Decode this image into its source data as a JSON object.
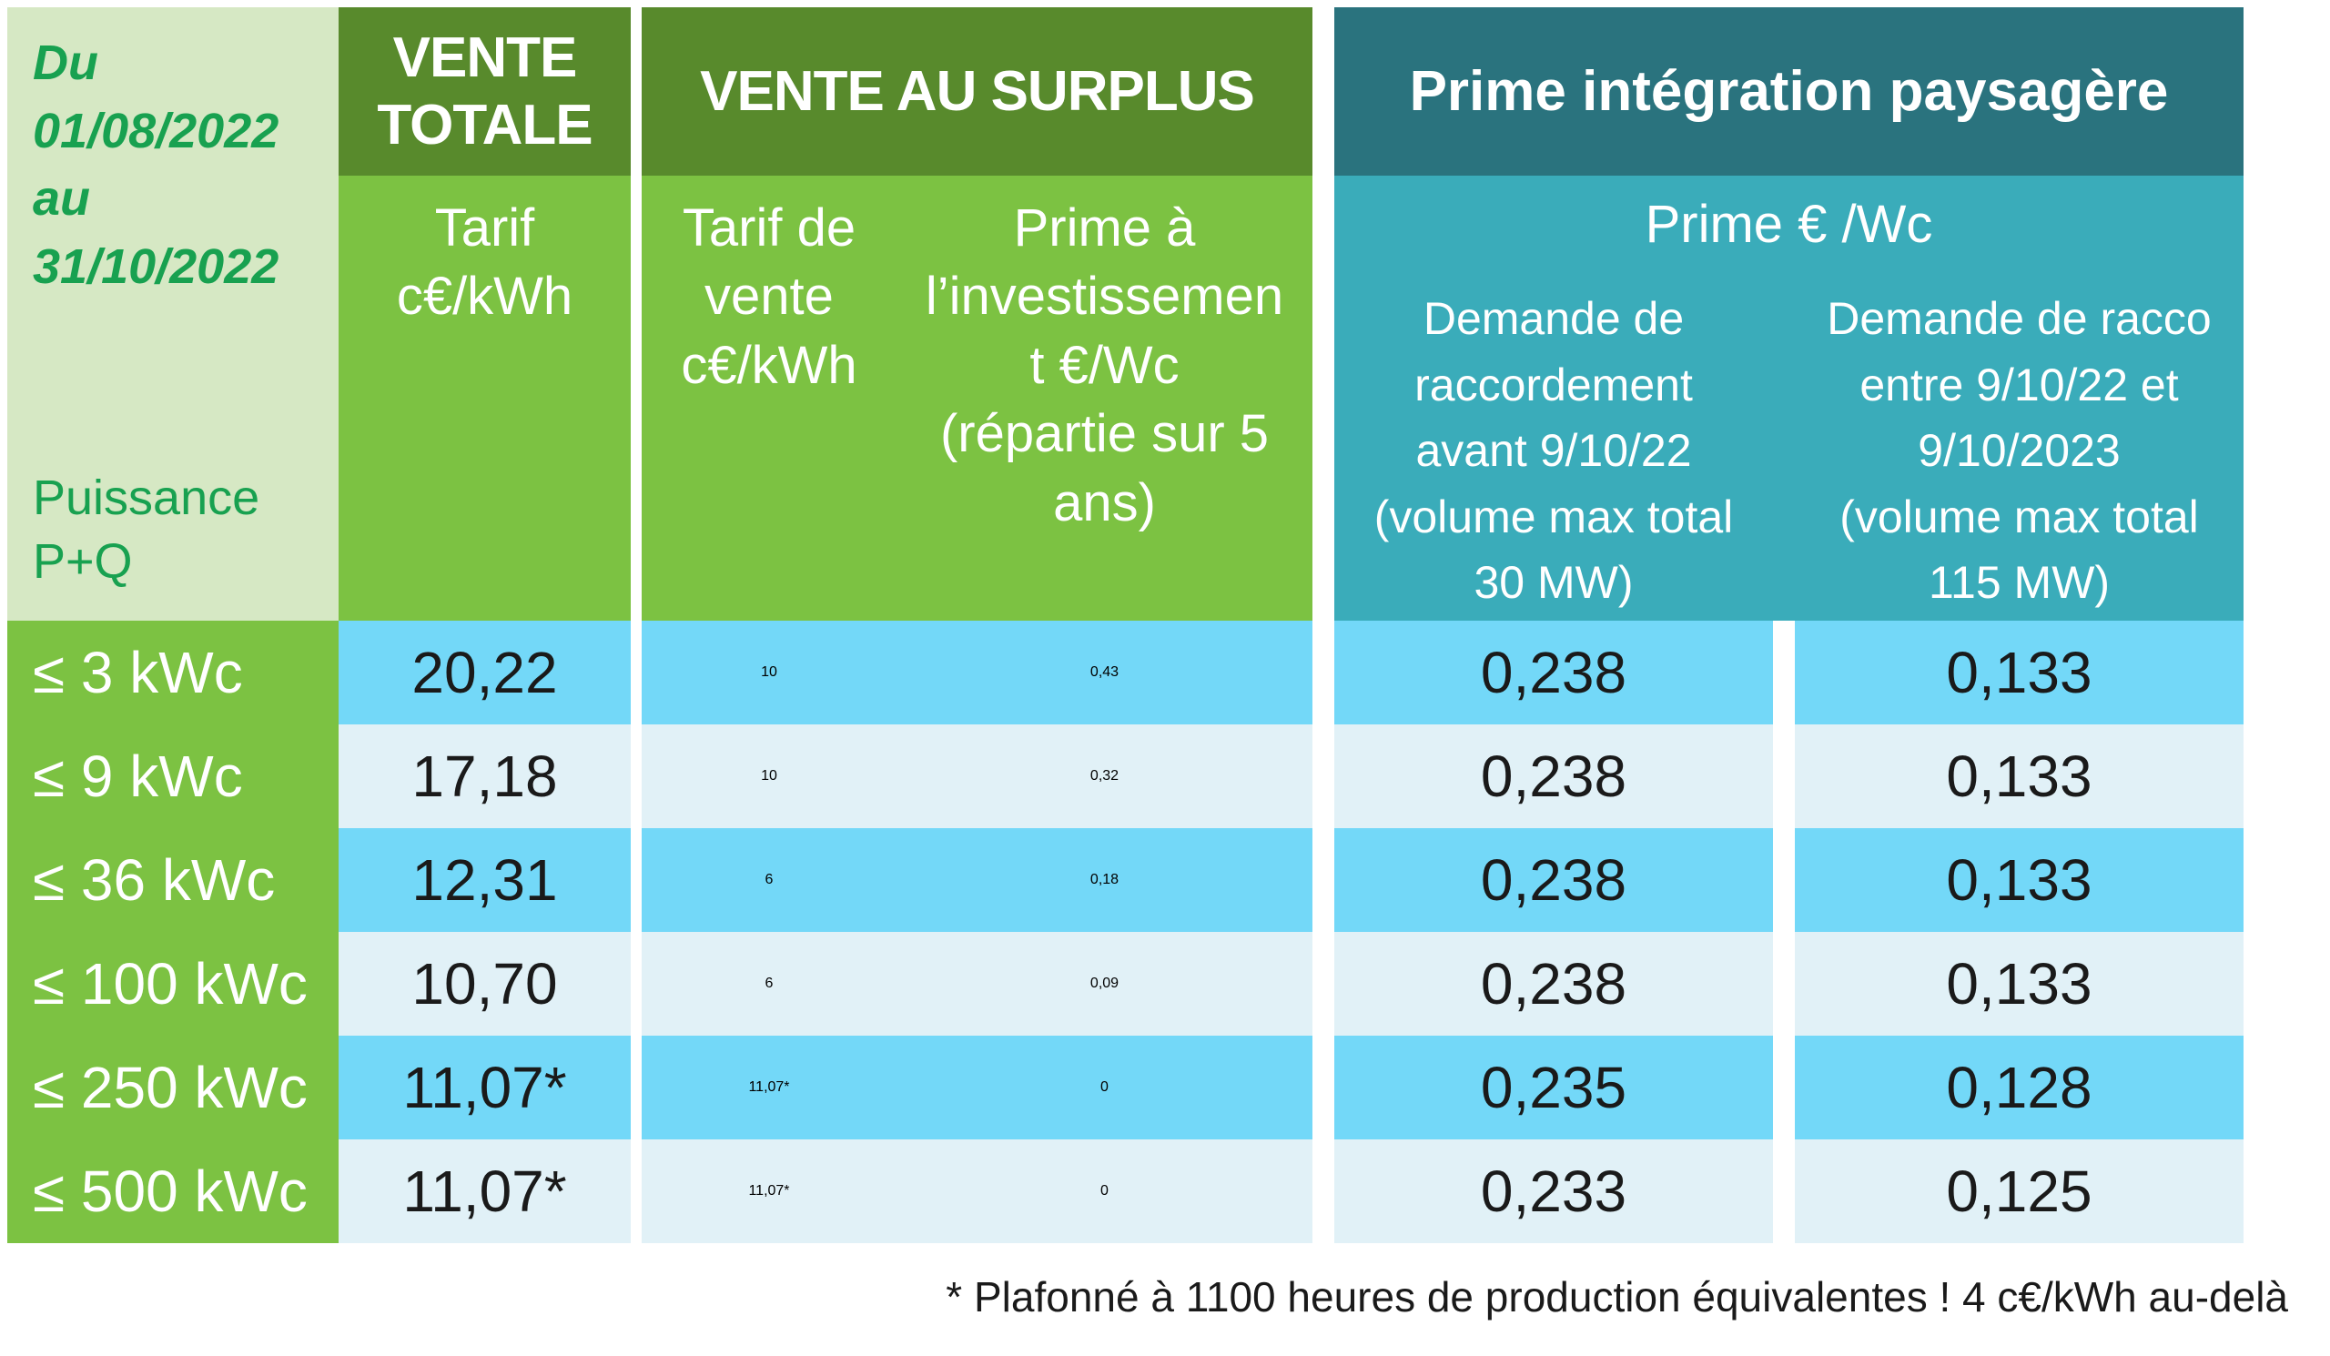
{
  "colors": {
    "dark_green": "#588a2c",
    "mid_green": "#7cc242",
    "pale_green": "#d6e8c4",
    "green_text": "#18a150",
    "dark_teal": "#2a737e",
    "light_teal": "#3aacba",
    "row_blue": "#73d8f8",
    "row_pale": "#e1f1f7",
    "text_dark": "#1a1a1a",
    "divider_white": "#ffffff"
  },
  "table": {
    "period": "Du\n01/08/2022\nau\n31/10/2022",
    "power_label": "Puissance\nP+Q",
    "vente_totale": {
      "title": "VENTE\nTOTALE",
      "sub": "Tarif\nc€/kWh"
    },
    "vente_surplus": {
      "title": "VENTE AU SURPLUS",
      "sub_tarif": "Tarif de\nvente\nc€/kWh",
      "sub_prime": "Prime à\nl’investissemen\nt €/Wc\n(répartie sur 5\nans)"
    },
    "prime_integration": {
      "title": "Prime intégration paysagère",
      "sub": "Prime € /Wc",
      "col_avant": "Demande de\nraccordement\navant 9/10/22\n(volume max total\n30 MW)",
      "col_entre": "Demande de racco\nentre 9/10/22 et\n9/10/2023\n(volume max total\n115 MW)"
    },
    "rows": [
      {
        "label": "≤ 3 kWc",
        "vente_totale": "20,22",
        "tarif_vente": "10",
        "prime_invest": "0,43",
        "prime_avant": "0,238",
        "prime_entre": "0,133"
      },
      {
        "label": "≤ 9 kWc",
        "vente_totale": "17,18",
        "tarif_vente": "10",
        "prime_invest": "0,32",
        "prime_avant": "0,238",
        "prime_entre": "0,133"
      },
      {
        "label": "≤ 36 kWc",
        "vente_totale": "12,31",
        "tarif_vente": "6",
        "prime_invest": "0,18",
        "prime_avant": "0,238",
        "prime_entre": "0,133"
      },
      {
        "label": "≤ 100 kWc",
        "vente_totale": "10,70",
        "tarif_vente": "6",
        "prime_invest": "0,09",
        "prime_avant": "0,238",
        "prime_entre": "0,133"
      },
      {
        "label": "≤ 250 kWc",
        "vente_totale": "11,07*",
        "tarif_vente": "11,07*",
        "prime_invest": "0",
        "prime_avant": "0,235",
        "prime_entre": "0,128"
      },
      {
        "label": "≤ 500 kWc",
        "vente_totale": "11,07*",
        "tarif_vente": "11,07*",
        "prime_invest": "0",
        "prime_avant": "0,233",
        "prime_entre": "0,125"
      }
    ],
    "footnote": "* Plafonné à 1100 heures de production équivalentes ! 4 c€/kWh au-delà"
  },
  "chart_data": {
    "type": "table",
    "period": "Du 01/08/2022 au 31/10/2022",
    "row_header": "Puissance P+Q",
    "columns": [
      "Vente totale – Tarif c€/kWh",
      "Vente au surplus – Tarif de vente c€/kWh",
      "Vente au surplus – Prime à l’investissement €/Wc (répartie sur 5 ans)",
      "Prime intégration paysagère – Prime €/Wc – Demande de raccordement avant 9/10/22 (volume max total 30 MW)",
      "Prime intégration paysagère – Prime €/Wc – Demande de racco entre 9/10/22 et 9/10/2023 (volume max total 115 MW)"
    ],
    "rows": [
      [
        "≤ 3 kWc",
        "20,22",
        "10",
        "0,43",
        "0,238",
        "0,133"
      ],
      [
        "≤ 9 kWc",
        "17,18",
        "10",
        "0,32",
        "0,238",
        "0,133"
      ],
      [
        "≤ 36 kWc",
        "12,31",
        "6",
        "0,18",
        "0,238",
        "0,133"
      ],
      [
        "≤ 100 kWc",
        "10,70",
        "6",
        "0,09",
        "0,238",
        "0,133"
      ],
      [
        "≤ 250 kWc",
        "11,07*",
        "11,07*",
        "0",
        "0,235",
        "0,128"
      ],
      [
        "≤ 500 kWc",
        "11,07*",
        "11,07*",
        "0",
        "0,233",
        "0,125"
      ]
    ],
    "footnote": "* Plafonné à 1100 heures de production équivalentes ! 4 c€/kWh au-delà"
  }
}
